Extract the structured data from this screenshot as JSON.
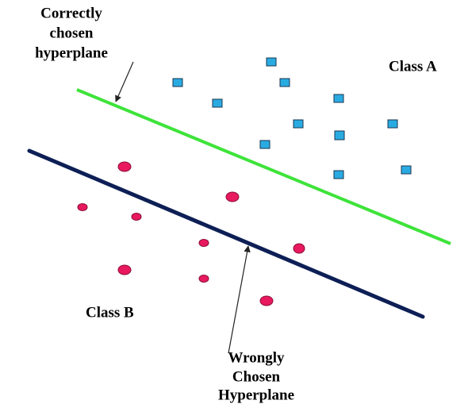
{
  "annotations": [
    {
      "lines": [
        "Correctly",
        "chosen",
        "hyperplane"
      ]
    },
    {
      "lines": [
        "Wrongly",
        "Chosen",
        "Hyperplane"
      ]
    }
  ],
  "classes": [
    "Class A",
    "Class B"
  ]
}
